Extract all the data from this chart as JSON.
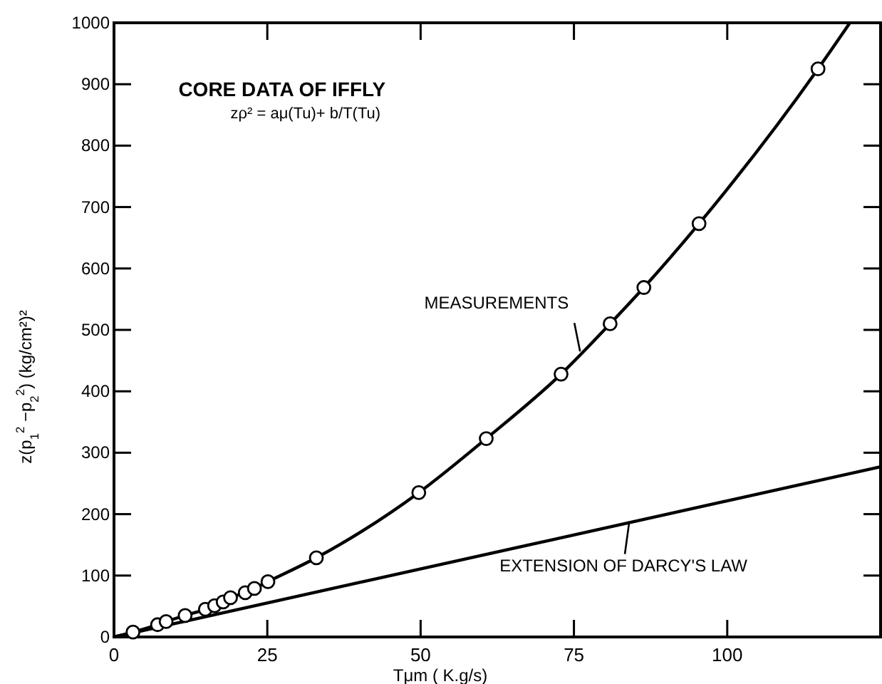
{
  "chart_data": {
    "type": "line",
    "title": "CORE DATA OF IFFLY",
    "subtitle": "zρ² = aμ(Tu)+ b/T(Tu)",
    "xlabel": "Tμm ( K.g/s)",
    "ylabel": "z(p$_{1}$$^{2}$ −p$_{2}$$^{2}$) (kg/cm²)²",
    "xlim": [
      0,
      125
    ],
    "xticks": [
      0,
      25,
      50,
      75,
      100
    ],
    "ylim": [
      0,
      1000
    ],
    "yticks": [
      0,
      100,
      200,
      300,
      400,
      500,
      600,
      700,
      800,
      900,
      1000
    ],
    "grid": false,
    "series": [
      {
        "color": "#000000",
        "marker": "none",
        "x": [
          0,
          3.1,
          7.1,
          8.5,
          11.6,
          14.9,
          16.4,
          17.8,
          19.0,
          21.4,
          22.9,
          25.1,
          33.0,
          49.7,
          60.7,
          72.9,
          80.9,
          86.4,
          95.4,
          114.8,
          120
        ],
        "values": [
          0,
          8,
          20,
          25,
          35,
          45,
          51,
          57,
          64,
          72,
          79,
          90,
          129,
          235,
          323,
          428,
          510,
          569,
          673,
          925,
          1000
        ]
      },
      {
        "type": "scatter",
        "color": "#000000",
        "marker": "circle",
        "x": [
          3.1,
          7.1,
          8.5,
          11.6,
          14.9,
          16.4,
          17.8,
          19.0,
          21.4,
          22.9,
          25.1,
          33.0,
          49.7,
          60.7,
          72.9,
          80.9,
          86.4,
          95.4,
          114.8
        ],
        "values": [
          8,
          20,
          25,
          35,
          45,
          51,
          57,
          64,
          72,
          79,
          90,
          129,
          235,
          323,
          428,
          510,
          569,
          673,
          925
        ]
      },
      {
        "color": "#000000",
        "marker": "none",
        "x": [
          0,
          125
        ],
        "values": [
          0,
          277
        ]
      }
    ],
    "annotations": [
      {
        "text": "MEASUREMENTS",
        "x": 76,
        "y": 465
      },
      {
        "text": "EXTENSION OF DARCY'S LAW",
        "x": 84,
        "y": 186
      }
    ]
  }
}
